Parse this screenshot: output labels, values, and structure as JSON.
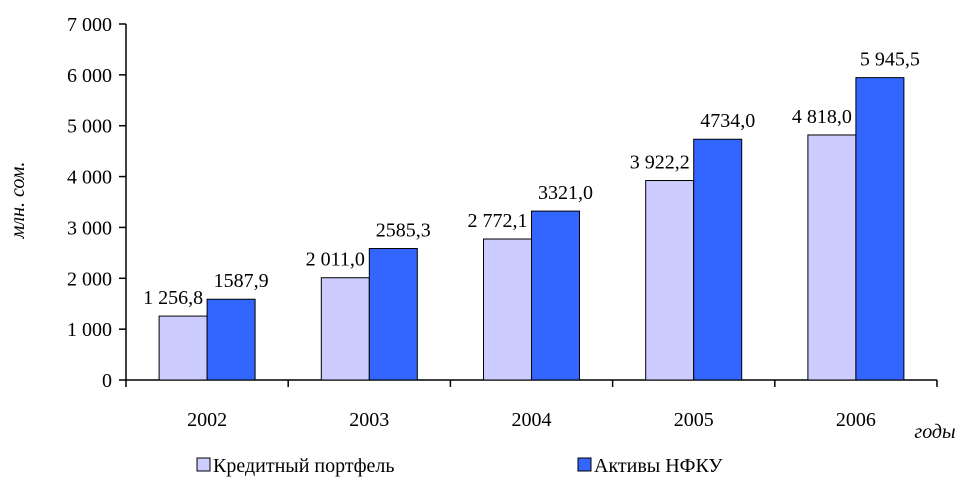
{
  "chart_data": {
    "type": "bar",
    "categories": [
      "2002",
      "2003",
      "2004",
      "2005",
      "2006"
    ],
    "series": [
      {
        "name": "Кредитный портфель",
        "color": "#ccccff",
        "values": [
          1256.8,
          2011.0,
          2772.1,
          3922.2,
          4818.0
        ],
        "value_labels": [
          "1 256,8",
          "2 011,0",
          "2 772,1",
          "3 922,2",
          "4 818,0"
        ]
      },
      {
        "name": "Активы НФКУ",
        "color": "#3366ff",
        "values": [
          1587.9,
          2585.3,
          3321.0,
          4734.0,
          5945.5
        ],
        "value_labels": [
          "1587,9",
          "2585,3",
          "3321,0",
          "4734,0",
          "5 945,5"
        ]
      }
    ],
    "ylabel": "млн. сом.",
    "xlabel": "годы",
    "ylim": [
      0,
      7000
    ],
    "yticks": [
      0,
      {
        "value": 1000,
        "label": "1 000"
      },
      {
        "value": 2000,
        "label": "2 000"
      },
      {
        "value": 3000,
        "label": "3 000"
      },
      {
        "value": 4000,
        "label": "4 000"
      },
      {
        "value": 5000,
        "label": "5 000"
      },
      {
        "value": 6000,
        "label": "6 000"
      },
      {
        "value": 7000,
        "label": "7 000"
      }
    ],
    "grid": false,
    "legend": "bottom"
  }
}
